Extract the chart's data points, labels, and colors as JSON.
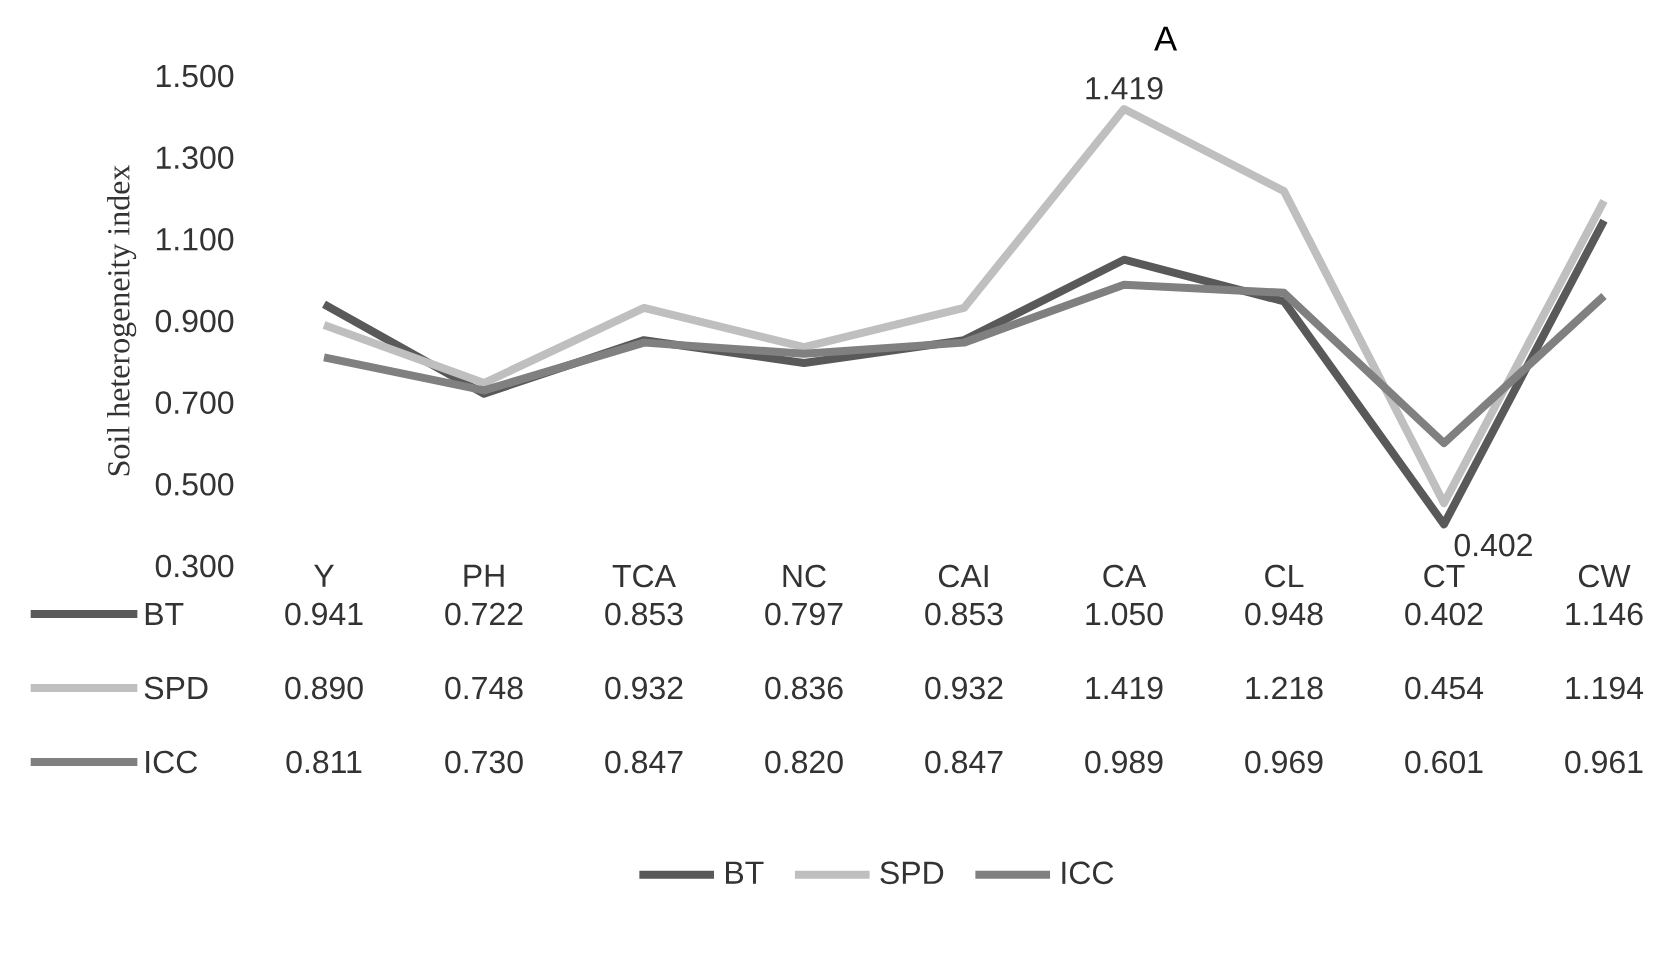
{
  "chart_data": {
    "type": "line",
    "title": "A",
    "ylabel": "Soil heterogeneity index",
    "categories": [
      "Y",
      "PH",
      "TCA",
      "NC",
      "CAI",
      "CA",
      "CL",
      "CT",
      "CW"
    ],
    "series": [
      {
        "name": "BT",
        "color": "#595959",
        "values": [
          0.941,
          0.722,
          0.853,
          0.797,
          0.853,
          1.05,
          0.948,
          0.402,
          1.146
        ],
        "value_labels": [
          "0.941",
          "0.722",
          "0.853",
          "0.797",
          "0.853",
          "1.050",
          "0.948",
          "0.402",
          "1.146"
        ]
      },
      {
        "name": "SPD",
        "color": "#bfbfbf",
        "values": [
          0.89,
          0.748,
          0.932,
          0.836,
          0.932,
          1.419,
          1.218,
          0.454,
          1.194
        ],
        "value_labels": [
          "0.890",
          "0.748",
          "0.932",
          "0.836",
          "0.932",
          "1.419",
          "1.218",
          "0.454",
          "1.194"
        ]
      },
      {
        "name": "ICC",
        "color": "#808080",
        "values": [
          0.811,
          0.73,
          0.847,
          0.82,
          0.847,
          0.989,
          0.969,
          0.601,
          0.961
        ],
        "value_labels": [
          "0.811",
          "0.730",
          "0.847",
          "0.820",
          "0.847",
          "0.989",
          "0.969",
          "0.601",
          "0.961"
        ]
      }
    ],
    "ylim": [
      0.3,
      1.5
    ],
    "yticks": [
      {
        "value": 0.3,
        "label": "0.300"
      },
      {
        "value": 0.5,
        "label": "0.500"
      },
      {
        "value": 0.7,
        "label": "0.700"
      },
      {
        "value": 0.9,
        "label": "0.900"
      },
      {
        "value": 1.1,
        "label": "1.100"
      },
      {
        "value": 1.3,
        "label": "1.300"
      },
      {
        "value": 1.5,
        "label": "1.500"
      }
    ],
    "annotations": [
      {
        "text": "1.419",
        "x": "CA",
        "y": 1.419
      },
      {
        "text": "0.402",
        "x": "CT",
        "y": 0.402
      }
    ],
    "legend": "bottom",
    "marker": "none",
    "line_style": "solid",
    "grid": false
  }
}
